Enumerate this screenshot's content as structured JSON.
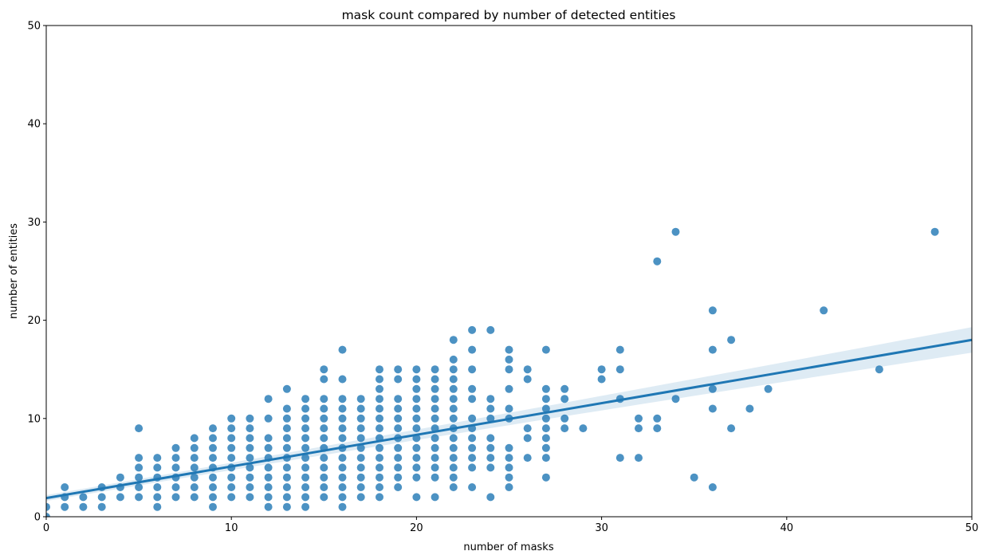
{
  "chart_data": {
    "type": "scatter",
    "title": "mask count compared by number of detected entities",
    "xlabel": "number of masks",
    "ylabel": "number of entities",
    "xlim": [
      0,
      50
    ],
    "ylim": [
      0,
      50
    ],
    "xticks": [
      0,
      10,
      20,
      30,
      40,
      50
    ],
    "yticks": [
      0,
      10,
      20,
      30,
      40,
      50
    ],
    "grid": false,
    "colors": {
      "points": "#1f77b4",
      "line": "#1f77b4",
      "band": "#1f77b4"
    },
    "regression": {
      "intercept": 1.9,
      "slope": 0.322,
      "ci_halfwidth_at_0": 0.3,
      "ci_halfwidth_at_50": 1.3
    },
    "points": [
      [
        0,
        0
      ],
      [
        0,
        1
      ],
      [
        1,
        1
      ],
      [
        1,
        2
      ],
      [
        1,
        3
      ],
      [
        2,
        1
      ],
      [
        2,
        2
      ],
      [
        3,
        1
      ],
      [
        3,
        2
      ],
      [
        3,
        3
      ],
      [
        4,
        2
      ],
      [
        4,
        3
      ],
      [
        4,
        4
      ],
      [
        5,
        2
      ],
      [
        5,
        3
      ],
      [
        5,
        4
      ],
      [
        5,
        5
      ],
      [
        5,
        6
      ],
      [
        5,
        9
      ],
      [
        6,
        1
      ],
      [
        6,
        2
      ],
      [
        6,
        3
      ],
      [
        6,
        4
      ],
      [
        6,
        5
      ],
      [
        6,
        6
      ],
      [
        7,
        2
      ],
      [
        7,
        3
      ],
      [
        7,
        4
      ],
      [
        7,
        5
      ],
      [
        7,
        6
      ],
      [
        7,
        7
      ],
      [
        8,
        2
      ],
      [
        8,
        3
      ],
      [
        8,
        4
      ],
      [
        8,
        5
      ],
      [
        8,
        6
      ],
      [
        8,
        7
      ],
      [
        8,
        8
      ],
      [
        9,
        1
      ],
      [
        9,
        2
      ],
      [
        9,
        3
      ],
      [
        9,
        4
      ],
      [
        9,
        5
      ],
      [
        9,
        6
      ],
      [
        9,
        7
      ],
      [
        9,
        8
      ],
      [
        9,
        9
      ],
      [
        10,
        2
      ],
      [
        10,
        3
      ],
      [
        10,
        4
      ],
      [
        10,
        5
      ],
      [
        10,
        6
      ],
      [
        10,
        7
      ],
      [
        10,
        8
      ],
      [
        10,
        9
      ],
      [
        10,
        10
      ],
      [
        11,
        2
      ],
      [
        11,
        3
      ],
      [
        11,
        4
      ],
      [
        11,
        5
      ],
      [
        11,
        6
      ],
      [
        11,
        7
      ],
      [
        11,
        8
      ],
      [
        11,
        9
      ],
      [
        11,
        10
      ],
      [
        12,
        1
      ],
      [
        12,
        2
      ],
      [
        12,
        3
      ],
      [
        12,
        4
      ],
      [
        12,
        5
      ],
      [
        12,
        6
      ],
      [
        12,
        7
      ],
      [
        12,
        8
      ],
      [
        12,
        10
      ],
      [
        12,
        12
      ],
      [
        13,
        1
      ],
      [
        13,
        2
      ],
      [
        13,
        3
      ],
      [
        13,
        4
      ],
      [
        13,
        5
      ],
      [
        13,
        6
      ],
      [
        13,
        7
      ],
      [
        13,
        8
      ],
      [
        13,
        9
      ],
      [
        13,
        10
      ],
      [
        13,
        11
      ],
      [
        13,
        13
      ],
      [
        14,
        1
      ],
      [
        14,
        2
      ],
      [
        14,
        3
      ],
      [
        14,
        4
      ],
      [
        14,
        5
      ],
      [
        14,
        6
      ],
      [
        14,
        7
      ],
      [
        14,
        8
      ],
      [
        14,
        9
      ],
      [
        14,
        10
      ],
      [
        14,
        11
      ],
      [
        14,
        12
      ],
      [
        15,
        2
      ],
      [
        15,
        3
      ],
      [
        15,
        4
      ],
      [
        15,
        5
      ],
      [
        15,
        6
      ],
      [
        15,
        7
      ],
      [
        15,
        8
      ],
      [
        15,
        9
      ],
      [
        15,
        10
      ],
      [
        15,
        11
      ],
      [
        15,
        12
      ],
      [
        15,
        14
      ],
      [
        15,
        15
      ],
      [
        16,
        1
      ],
      [
        16,
        2
      ],
      [
        16,
        3
      ],
      [
        16,
        4
      ],
      [
        16,
        5
      ],
      [
        16,
        6
      ],
      [
        16,
        7
      ],
      [
        16,
        8
      ],
      [
        16,
        9
      ],
      [
        16,
        10
      ],
      [
        16,
        11
      ],
      [
        16,
        12
      ],
      [
        16,
        14
      ],
      [
        16,
        17
      ],
      [
        17,
        2
      ],
      [
        17,
        3
      ],
      [
        17,
        4
      ],
      [
        17,
        5
      ],
      [
        17,
        6
      ],
      [
        17,
        7
      ],
      [
        17,
        8
      ],
      [
        17,
        9
      ],
      [
        17,
        10
      ],
      [
        17,
        11
      ],
      [
        17,
        12
      ],
      [
        18,
        2
      ],
      [
        18,
        3
      ],
      [
        18,
        4
      ],
      [
        18,
        5
      ],
      [
        18,
        6
      ],
      [
        18,
        7
      ],
      [
        18,
        8
      ],
      [
        18,
        9
      ],
      [
        18,
        10
      ],
      [
        18,
        11
      ],
      [
        18,
        12
      ],
      [
        18,
        13
      ],
      [
        18,
        14
      ],
      [
        18,
        15
      ],
      [
        19,
        3
      ],
      [
        19,
        4
      ],
      [
        19,
        5
      ],
      [
        19,
        6
      ],
      [
        19,
        7
      ],
      [
        19,
        8
      ],
      [
        19,
        9
      ],
      [
        19,
        10
      ],
      [
        19,
        11
      ],
      [
        19,
        12
      ],
      [
        19,
        14
      ],
      [
        19,
        15
      ],
      [
        20,
        2
      ],
      [
        20,
        4
      ],
      [
        20,
        5
      ],
      [
        20,
        6
      ],
      [
        20,
        7
      ],
      [
        20,
        8
      ],
      [
        20,
        9
      ],
      [
        20,
        10
      ],
      [
        20,
        11
      ],
      [
        20,
        12
      ],
      [
        20,
        13
      ],
      [
        20,
        14
      ],
      [
        20,
        15
      ],
      [
        21,
        2
      ],
      [
        21,
        4
      ],
      [
        21,
        5
      ],
      [
        21,
        6
      ],
      [
        21,
        7
      ],
      [
        21,
        8
      ],
      [
        21,
        9
      ],
      [
        21,
        10
      ],
      [
        21,
        11
      ],
      [
        21,
        12
      ],
      [
        21,
        13
      ],
      [
        21,
        14
      ],
      [
        21,
        15
      ],
      [
        22,
        3
      ],
      [
        22,
        4
      ],
      [
        22,
        5
      ],
      [
        22,
        6
      ],
      [
        22,
        7
      ],
      [
        22,
        8
      ],
      [
        22,
        9
      ],
      [
        22,
        10
      ],
      [
        22,
        11
      ],
      [
        22,
        12
      ],
      [
        22,
        13
      ],
      [
        22,
        14
      ],
      [
        22,
        15
      ],
      [
        22,
        16
      ],
      [
        22,
        18
      ],
      [
        23,
        3
      ],
      [
        23,
        5
      ],
      [
        23,
        6
      ],
      [
        23,
        7
      ],
      [
        23,
        8
      ],
      [
        23,
        9
      ],
      [
        23,
        10
      ],
      [
        23,
        12
      ],
      [
        23,
        13
      ],
      [
        23,
        15
      ],
      [
        23,
        17
      ],
      [
        23,
        19
      ],
      [
        24,
        2
      ],
      [
        24,
        5
      ],
      [
        24,
        6
      ],
      [
        24,
        7
      ],
      [
        24,
        8
      ],
      [
        24,
        10
      ],
      [
        24,
        11
      ],
      [
        24,
        12
      ],
      [
        24,
        19
      ],
      [
        25,
        3
      ],
      [
        25,
        4
      ],
      [
        25,
        5
      ],
      [
        25,
        6
      ],
      [
        25,
        7
      ],
      [
        25,
        10
      ],
      [
        25,
        11
      ],
      [
        25,
        13
      ],
      [
        25,
        15
      ],
      [
        25,
        16
      ],
      [
        25,
        17
      ],
      [
        26,
        6
      ],
      [
        26,
        8
      ],
      [
        26,
        9
      ],
      [
        26,
        14
      ],
      [
        26,
        15
      ],
      [
        27,
        4
      ],
      [
        27,
        6
      ],
      [
        27,
        7
      ],
      [
        27,
        8
      ],
      [
        27,
        9
      ],
      [
        27,
        10
      ],
      [
        27,
        11
      ],
      [
        27,
        12
      ],
      [
        27,
        13
      ],
      [
        27,
        17
      ],
      [
        28,
        9
      ],
      [
        28,
        10
      ],
      [
        28,
        12
      ],
      [
        28,
        13
      ],
      [
        29,
        9
      ],
      [
        30,
        14
      ],
      [
        30,
        15
      ],
      [
        31,
        6
      ],
      [
        31,
        12
      ],
      [
        31,
        15
      ],
      [
        31,
        17
      ],
      [
        32,
        6
      ],
      [
        32,
        9
      ],
      [
        32,
        10
      ],
      [
        33,
        9
      ],
      [
        33,
        10
      ],
      [
        33,
        26
      ],
      [
        34,
        12
      ],
      [
        34,
        29
      ],
      [
        35,
        4
      ],
      [
        36,
        3
      ],
      [
        36,
        11
      ],
      [
        36,
        13
      ],
      [
        36,
        17
      ],
      [
        36,
        21
      ],
      [
        37,
        9
      ],
      [
        37,
        18
      ],
      [
        38,
        11
      ],
      [
        39,
        13
      ],
      [
        42,
        21
      ],
      [
        45,
        15
      ],
      [
        48,
        29
      ]
    ]
  }
}
